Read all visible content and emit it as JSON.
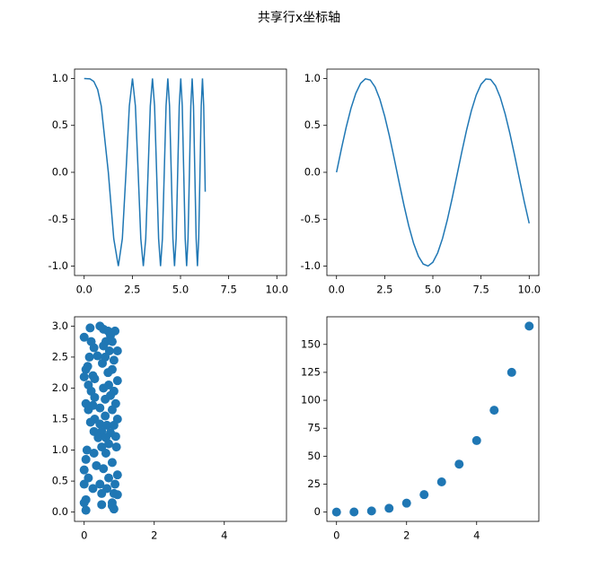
{
  "title": "共享行x坐标轴",
  "chart_data": [
    {
      "type": "line",
      "color": "#1f77b4",
      "x": [
        0,
        0.3,
        0.5,
        0.7,
        0.8862,
        1.2533,
        1.535,
        1.7725,
        1.9817,
        2.1708,
        2.3447,
        2.5066,
        2.6587,
        2.8025,
        2.9393,
        3.07,
        3.1953,
        3.316,
        3.4323,
        3.5449,
        3.654,
        3.76,
        3.863,
        3.9633,
        4.0612,
        4.1568,
        4.2502,
        4.3416,
        4.4311,
        4.5189,
        4.605,
        4.6895,
        4.7725,
        4.8541,
        4.9343,
        5.0133,
        5.091,
        5.1675,
        5.243,
        5.3174,
        5.3907,
        5.4631,
        5.5345,
        5.605,
        5.6746,
        5.7434,
        5.8114,
        5.8786,
        5.945,
        6.0107,
        6.0757,
        6.14,
        6.2036,
        6.2666,
        6.2832
      ],
      "values": [
        1,
        0.996,
        0.969,
        0.882,
        0.707,
        0,
        -0.707,
        -1,
        -0.707,
        0,
        0.707,
        1,
        0.707,
        0,
        -0.707,
        -1,
        -0.707,
        0,
        0.707,
        1,
        0.707,
        0,
        -0.707,
        -1,
        -0.707,
        0,
        0.707,
        1,
        0.707,
        0,
        -0.707,
        -1,
        -0.707,
        0,
        0.707,
        1,
        0.707,
        0,
        -0.707,
        -1,
        -0.707,
        0,
        0.707,
        1,
        0.707,
        0,
        -0.707,
        -1,
        -0.707,
        0,
        0.707,
        1,
        0.707,
        0,
        -0.207
      ],
      "xlim": [
        -0.5,
        10.5
      ],
      "ylim": [
        -1.1,
        1.1
      ],
      "xticks": [
        {
          "value": 0,
          "label": "0.0"
        },
        {
          "value": 2.5,
          "label": "2.5"
        },
        {
          "value": 5,
          "label": "5.0"
        },
        {
          "value": 7.5,
          "label": "7.5"
        },
        {
          "value": 10,
          "label": "10.0"
        }
      ],
      "yticks": [
        {
          "value": -1,
          "label": "-1.0"
        },
        {
          "value": -0.5,
          "label": "-0.5"
        },
        {
          "value": 0,
          "label": "0.0"
        },
        {
          "value": 0.5,
          "label": "0.5"
        },
        {
          "value": 1,
          "label": "1.0"
        }
      ]
    },
    {
      "type": "line",
      "color": "#1f77b4",
      "x": [
        0,
        0.25,
        0.5,
        0.75,
        1,
        1.25,
        1.5,
        1.75,
        2,
        2.25,
        2.5,
        2.75,
        3,
        3.25,
        3.5,
        3.75,
        4,
        4.25,
        4.5,
        4.75,
        5,
        5.25,
        5.5,
        5.75,
        6,
        6.25,
        6.5,
        6.75,
        7,
        7.25,
        7.5,
        7.75,
        8,
        8.25,
        8.5,
        8.75,
        9,
        9.25,
        9.5,
        9.75,
        10
      ],
      "values": [
        0,
        0.247,
        0.479,
        0.682,
        0.841,
        0.949,
        0.997,
        0.984,
        0.909,
        0.778,
        0.598,
        0.382,
        0.141,
        -0.108,
        -0.351,
        -0.572,
        -0.757,
        -0.895,
        -0.978,
        -0.999,
        -0.959,
        -0.859,
        -0.706,
        -0.508,
        -0.279,
        -0.033,
        0.215,
        0.45,
        0.657,
        0.823,
        0.938,
        0.995,
        0.989,
        0.923,
        0.798,
        0.624,
        0.412,
        0.174,
        -0.075,
        -0.319,
        -0.544
      ],
      "xlim": [
        -0.5,
        10.5
      ],
      "ylim": [
        -1.1,
        1.1
      ],
      "xticks": [
        {
          "value": 0,
          "label": "0.0"
        },
        {
          "value": 2.5,
          "label": "2.5"
        },
        {
          "value": 5,
          "label": "5.0"
        },
        {
          "value": 7.5,
          "label": "7.5"
        },
        {
          "value": 10,
          "label": "10.0"
        }
      ],
      "yticks": [
        {
          "value": -1,
          "label": "-1.0"
        },
        {
          "value": -0.5,
          "label": "-0.5"
        },
        {
          "value": 0,
          "label": "0.0"
        },
        {
          "value": 0.5,
          "label": "0.5"
        },
        {
          "value": 1,
          "label": "1.0"
        }
      ]
    },
    {
      "type": "scatter",
      "color": "#1f77b4",
      "x": [
        0,
        0.17,
        0.45,
        0.55,
        0.68,
        0.88,
        0.75,
        0.2,
        0.62,
        0.8,
        0.28,
        0.55,
        0.95,
        0.72,
        0.15,
        0.38,
        0.6,
        0.85,
        0.1,
        0.52,
        0.8,
        0.05,
        0.25,
        0.68,
        0.3,
        0,
        0.95,
        0.12,
        0.7,
        0.55,
        0.2,
        0.85,
        0.75,
        0.3,
        0.6,
        0.9,
        0.05,
        0.25,
        0.45,
        0.12,
        0.8,
        0.95,
        0.6,
        0.3,
        0.18,
        0.45,
        0.65,
        0.85,
        0.28,
        0.5,
        0.75,
        0.4,
        0.62,
        0.9,
        0.7,
        0.08,
        0.5,
        0.92,
        0.28,
        0.62,
        0.05,
        0.8,
        0.35,
        0.55,
        0,
        0.95,
        0.12,
        0.7,
        0.88,
        0,
        0.45,
        0.65,
        0.25,
        0.5,
        0.85,
        0.95,
        0.05,
        0.8,
        0,
        0.5,
        0.85,
        0.05,
        0.8
      ],
      "values": [
        2.82,
        2.97,
        3.0,
        2.95,
        2.92,
        2.92,
        2.85,
        2.75,
        2.75,
        2.75,
        2.65,
        2.68,
        2.6,
        2.6,
        2.5,
        2.52,
        2.5,
        2.45,
        2.35,
        2.4,
        2.3,
        2.3,
        2.2,
        2.25,
        2.15,
        2.18,
        2.12,
        2.05,
        2.05,
        2.0,
        1.95,
        1.95,
        1.88,
        1.85,
        1.82,
        1.75,
        1.75,
        1.72,
        1.68,
        1.65,
        1.65,
        1.5,
        1.55,
        1.5,
        1.45,
        1.42,
        1.4,
        1.4,
        1.3,
        1.3,
        1.28,
        1.2,
        1.2,
        1.22,
        1.1,
        1.0,
        1.05,
        1.05,
        0.95,
        0.95,
        0.85,
        0.8,
        0.75,
        0.7,
        0.68,
        0.6,
        0.55,
        0.55,
        0.45,
        0.45,
        0.45,
        0.38,
        0.38,
        0.3,
        0.3,
        0.28,
        0.2,
        0.15,
        0.15,
        0.12,
        0.05,
        0.03,
        0.1
      ],
      "xlim": [
        -0.275,
        5.775
      ],
      "ylim": [
        -0.15,
        3.15
      ],
      "xticks": [
        0,
        2,
        4
      ],
      "yticks": [
        {
          "value": 0,
          "label": "0.0"
        },
        {
          "value": 0.5,
          "label": "0.5"
        },
        {
          "value": 1,
          "label": "1.0"
        },
        {
          "value": 1.5,
          "label": "1.5"
        },
        {
          "value": 2,
          "label": "2.0"
        },
        {
          "value": 2.5,
          "label": "2.5"
        },
        {
          "value": 3,
          "label": "3.0"
        }
      ]
    },
    {
      "type": "scatter",
      "color": "#1f77b4",
      "x": [
        0,
        0.5,
        1,
        1.5,
        2,
        2.5,
        3,
        3.5,
        4,
        4.5,
        5,
        5.5
      ],
      "values": [
        0,
        0.125,
        1,
        3.375,
        8,
        15.625,
        27,
        42.875,
        64,
        91.125,
        125,
        166.375
      ],
      "xlim": [
        -0.275,
        5.775
      ],
      "ylim": [
        -8.32,
        174.7
      ],
      "xticks": [
        0,
        2,
        4
      ],
      "yticks": [
        0,
        25,
        50,
        75,
        100,
        125,
        150
      ]
    }
  ]
}
